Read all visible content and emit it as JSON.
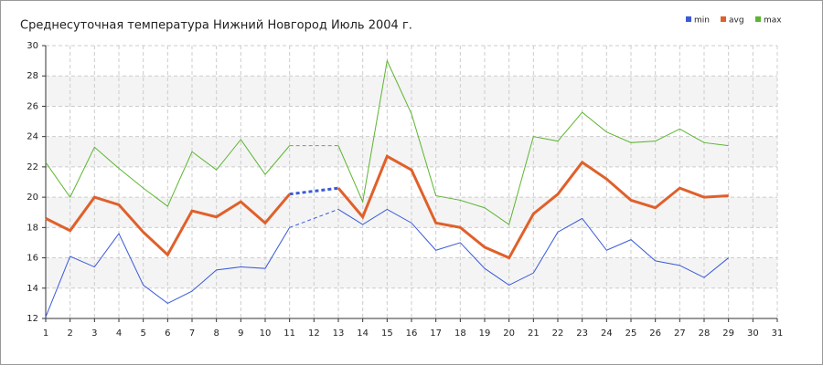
{
  "chart_data": {
    "type": "line",
    "title": "Среднесуточная температура Нижний Новгород  Июль 2004 г.",
    "x": [
      1,
      2,
      3,
      4,
      5,
      6,
      7,
      8,
      9,
      10,
      11,
      12,
      13,
      14,
      15,
      16,
      17,
      18,
      19,
      20,
      21,
      22,
      23,
      24,
      25,
      26,
      27,
      28,
      29
    ],
    "series": [
      {
        "name": "min",
        "color": "#3a5ad8",
        "values": [
          12.1,
          16.1,
          15.4,
          17.6,
          14.2,
          13.0,
          13.8,
          15.2,
          15.4,
          15.3,
          18.0,
          null,
          19.2,
          18.2,
          19.2,
          18.3,
          16.5,
          17.0,
          15.3,
          14.2,
          15.0,
          17.7,
          18.6,
          16.5,
          17.2,
          15.8,
          15.5,
          14.7,
          16.0
        ]
      },
      {
        "name": "avg",
        "color": "#e0602a",
        "values": [
          18.6,
          17.8,
          20.0,
          19.5,
          17.7,
          16.2,
          19.1,
          18.7,
          19.7,
          18.3,
          20.2,
          null,
          20.6,
          18.7,
          22.7,
          21.8,
          18.3,
          18.0,
          16.7,
          16.0,
          18.9,
          20.2,
          22.3,
          21.2,
          19.8,
          19.3,
          20.6,
          20.0,
          20.1
        ]
      },
      {
        "name": "max",
        "color": "#5cb531",
        "values": [
          22.3,
          20.0,
          23.3,
          21.9,
          20.6,
          19.4,
          23.0,
          21.8,
          23.8,
          21.5,
          23.4,
          null,
          23.4,
          19.7,
          29.0,
          25.5,
          20.1,
          19.8,
          19.3,
          18.2,
          24.0,
          23.7,
          25.6,
          24.3,
          23.6,
          23.7,
          24.5,
          23.6,
          23.4
        ]
      }
    ],
    "xlim": [
      1,
      31
    ],
    "xticks": [
      1,
      2,
      3,
      4,
      5,
      6,
      7,
      8,
      9,
      10,
      11,
      12,
      13,
      14,
      15,
      16,
      17,
      18,
      19,
      20,
      21,
      22,
      23,
      24,
      25,
      26,
      27,
      28,
      29,
      30,
      31
    ],
    "ylim": [
      12,
      30
    ],
    "yticks": [
      12,
      14,
      16,
      18,
      20,
      22,
      24,
      26,
      28,
      30
    ],
    "grid": true,
    "legend": "top-right"
  }
}
